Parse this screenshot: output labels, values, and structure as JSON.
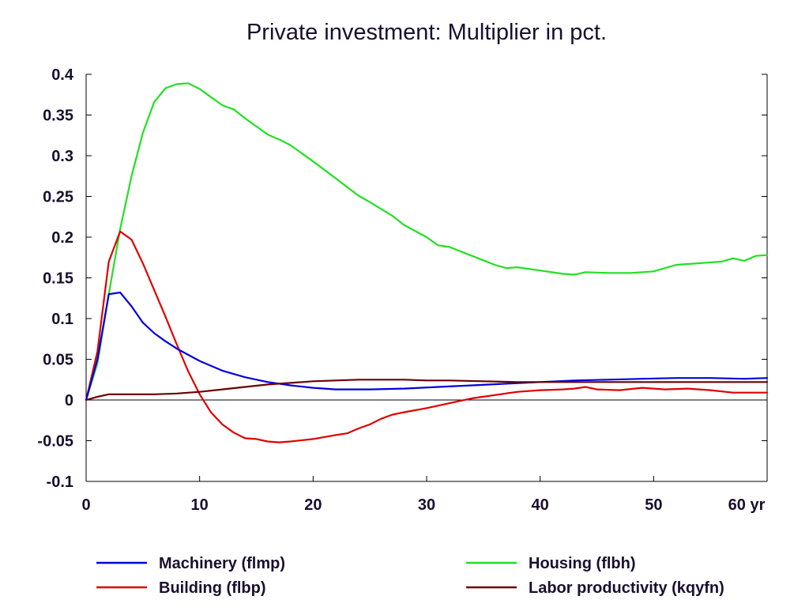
{
  "chart_data": {
    "type": "line",
    "title": "Private investment: Multiplier in pct.",
    "xlabel": "",
    "ylabel": "",
    "x_unit_suffix": "yr",
    "xlim": [
      0,
      60
    ],
    "ylim": [
      -0.1,
      0.4
    ],
    "x_ticks": [
      0,
      10,
      20,
      30,
      40,
      50,
      60
    ],
    "x_tick_labels": [
      "0",
      "10",
      "20",
      "30",
      "40",
      "50",
      "60 yr"
    ],
    "y_ticks": [
      -0.1,
      -0.05,
      0,
      0.05,
      0.1,
      0.15,
      0.2,
      0.25,
      0.3,
      0.35,
      0.4
    ],
    "y_tick_labels": [
      "-0.1",
      "-0.05",
      "0",
      "0.05",
      "0.1",
      "0.15",
      "0.2",
      "0.25",
      "0.3",
      "0.35",
      "0.4"
    ],
    "grid": false,
    "zero_line": true,
    "legend_position": "bottom",
    "series": [
      {
        "name": "Machinery (flmp)",
        "color": "#0000e0",
        "x": [
          0,
          1,
          2,
          3,
          4,
          5,
          6,
          7,
          8,
          10,
          12,
          14,
          16,
          18,
          20,
          22,
          25,
          28,
          31,
          34,
          37,
          40,
          43,
          46,
          49,
          52,
          55,
          58,
          60
        ],
        "y": [
          0,
          0.05,
          0.13,
          0.132,
          0.115,
          0.095,
          0.082,
          0.072,
          0.063,
          0.048,
          0.036,
          0.028,
          0.022,
          0.018,
          0.015,
          0.013,
          0.013,
          0.014,
          0.016,
          0.018,
          0.02,
          0.022,
          0.024,
          0.025,
          0.026,
          0.027,
          0.027,
          0.026,
          0.027
        ]
      },
      {
        "name": "Building (flbp)",
        "color": "#e00000",
        "x": [
          0,
          1,
          2,
          3,
          4,
          5,
          6,
          7,
          8,
          9,
          10,
          11,
          12,
          13,
          14,
          15,
          16,
          17,
          18,
          20,
          22,
          23,
          24,
          25,
          26,
          27,
          28,
          30,
          32,
          34,
          36,
          38,
          40,
          42,
          43,
          44,
          45,
          47,
          49,
          51,
          53,
          55,
          57,
          60
        ],
        "y": [
          0,
          0.06,
          0.17,
          0.207,
          0.197,
          0.168,
          0.135,
          0.102,
          0.068,
          0.035,
          0.007,
          -0.015,
          -0.03,
          -0.04,
          -0.047,
          -0.048,
          -0.051,
          -0.052,
          -0.051,
          -0.048,
          -0.043,
          -0.041,
          -0.035,
          -0.03,
          -0.023,
          -0.018,
          -0.015,
          -0.01,
          -0.004,
          0.002,
          0.006,
          0.01,
          0.012,
          0.013,
          0.014,
          0.016,
          0.013,
          0.012,
          0.015,
          0.013,
          0.014,
          0.012,
          0.009,
          0.009
        ]
      },
      {
        "name": "Housing (flbh)",
        "color": "#22e022",
        "x": [
          0,
          1,
          2,
          3,
          4,
          5,
          6,
          7,
          8,
          9,
          10,
          11,
          12,
          13,
          14,
          15,
          16,
          17,
          18,
          20,
          22,
          24,
          25,
          27,
          28,
          30,
          31,
          32,
          34,
          36,
          37,
          38,
          40,
          42,
          43,
          44,
          46,
          48,
          50,
          52,
          54,
          56,
          57,
          58,
          59,
          60
        ],
        "y": [
          0,
          0.045,
          0.13,
          0.21,
          0.275,
          0.328,
          0.366,
          0.383,
          0.388,
          0.389,
          0.382,
          0.372,
          0.362,
          0.357,
          0.346,
          0.336,
          0.326,
          0.32,
          0.313,
          0.293,
          0.272,
          0.251,
          0.243,
          0.226,
          0.215,
          0.2,
          0.19,
          0.188,
          0.177,
          0.166,
          0.162,
          0.163,
          0.159,
          0.155,
          0.154,
          0.157,
          0.156,
          0.156,
          0.158,
          0.166,
          0.168,
          0.17,
          0.174,
          0.171,
          0.177,
          0.178
        ]
      },
      {
        "name": "Labor productivity (kqyfn)",
        "color": "#6b0000",
        "x": [
          0,
          1,
          2,
          4,
          6,
          8,
          10,
          12,
          14,
          16,
          18,
          20,
          22,
          24,
          26,
          28,
          30,
          32,
          35,
          38,
          41,
          44,
          47,
          50,
          53,
          56,
          60
        ],
        "y": [
          0,
          0.004,
          0.007,
          0.007,
          0.007,
          0.008,
          0.01,
          0.013,
          0.016,
          0.019,
          0.021,
          0.023,
          0.024,
          0.025,
          0.025,
          0.025,
          0.024,
          0.024,
          0.023,
          0.022,
          0.022,
          0.022,
          0.022,
          0.022,
          0.022,
          0.022,
          0.022
        ]
      }
    ]
  }
}
